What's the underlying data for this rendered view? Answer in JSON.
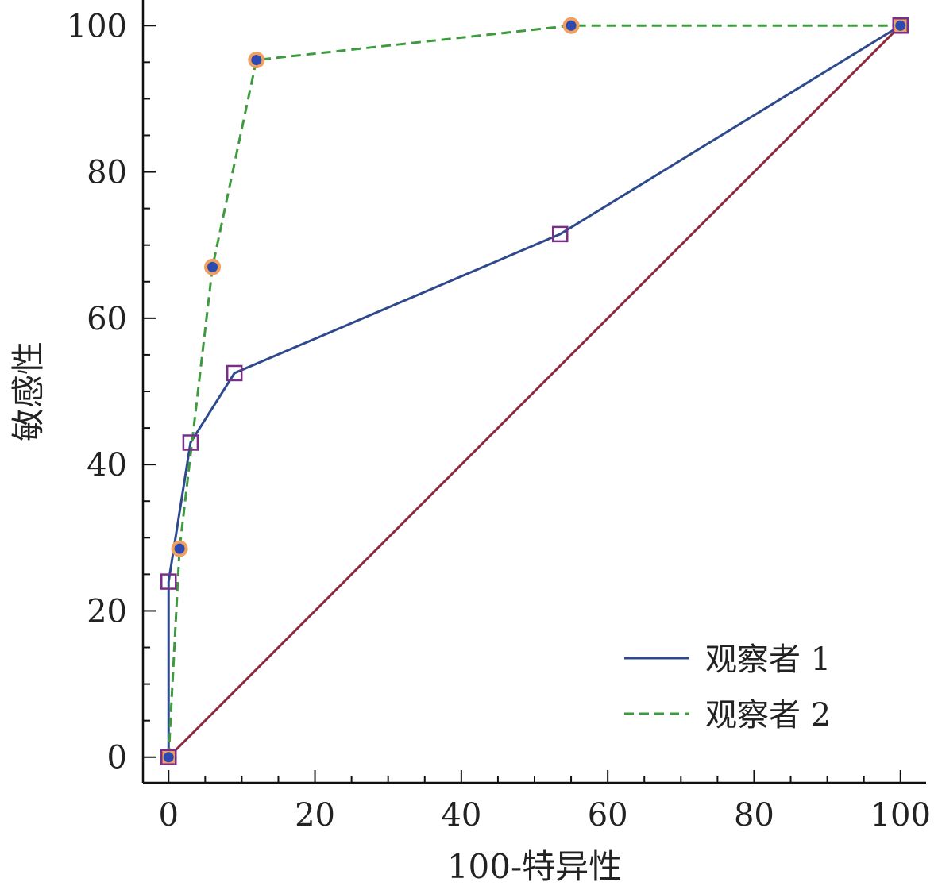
{
  "chart_data": {
    "type": "line",
    "xlabel": "100-特异性",
    "ylabel": "敏感性",
    "xlim": [
      -3.5,
      103.5
    ],
    "ylim": [
      -3.5,
      103.5
    ],
    "x_ticks": [
      0,
      20,
      40,
      60,
      80,
      100
    ],
    "y_ticks": [
      0,
      20,
      40,
      60,
      80,
      100
    ],
    "x_tick_labels": [
      "0",
      "20",
      "40",
      "60",
      "80",
      "100"
    ],
    "y_tick_labels": [
      "0",
      "20",
      "40",
      "60",
      "80",
      "100"
    ],
    "grid": false,
    "legend_position": "bottom-right",
    "series": [
      {
        "name": "观察者 1",
        "style": "solid",
        "color": "#2e4a8c",
        "marker": "square",
        "marker_color": "#7a2e8c",
        "x": [
          0,
          0,
          3,
          9,
          53.5,
          100
        ],
        "y": [
          0,
          24,
          43,
          52.5,
          71.5,
          100
        ]
      },
      {
        "name": "观察者 2",
        "style": "dashed",
        "color": "#3e9a3e",
        "marker": "circle",
        "marker_color": "#2e4ab0",
        "marker_edge": "#f0a060",
        "x": [
          0,
          1.5,
          6,
          12,
          55,
          100
        ],
        "y": [
          0,
          28.5,
          67,
          95.3,
          100,
          100
        ]
      }
    ],
    "reference_line": {
      "color": "#8c2a3a",
      "x": [
        0,
        100
      ],
      "y": [
        0,
        100
      ]
    }
  }
}
